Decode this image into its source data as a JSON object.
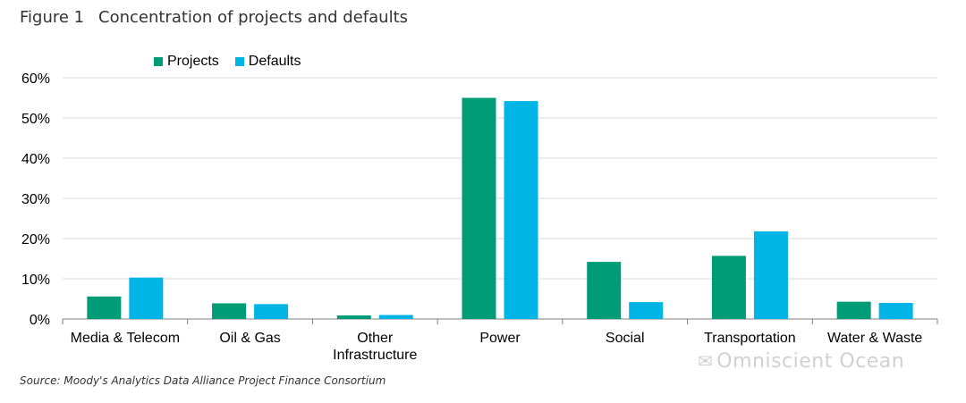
{
  "header": {
    "figure_number": "Figure 1",
    "title": "Concentration of projects and defaults"
  },
  "source": "Source: Moody's Analytics Data Alliance Project Finance Consortium",
  "watermark": "Omniscient Ocean",
  "colors": {
    "projects": "#009b77",
    "defaults": "#00b5e5",
    "grid": "#d9d9d9",
    "axis": "#7f7f7f"
  },
  "chart_data": {
    "type": "bar",
    "categories": [
      [
        "Media & Telecom"
      ],
      [
        "Oil & Gas"
      ],
      [
        "Other",
        "Infrastructure"
      ],
      [
        "Power"
      ],
      [
        "Social"
      ],
      [
        "Transportation"
      ],
      [
        "Water & Waste"
      ]
    ],
    "series": [
      {
        "name": "Projects",
        "values": [
          5.6,
          3.9,
          0.9,
          55.0,
          14.2,
          15.7,
          4.3
        ]
      },
      {
        "name": "Defaults",
        "values": [
          10.3,
          3.7,
          1.0,
          54.2,
          4.2,
          21.8,
          4.0
        ]
      }
    ],
    "ylim": [
      0,
      60
    ],
    "yticks": [
      "0%",
      "10%",
      "20%",
      "30%",
      "40%",
      "50%",
      "60%"
    ],
    "grid": true,
    "legend": "top-left"
  }
}
